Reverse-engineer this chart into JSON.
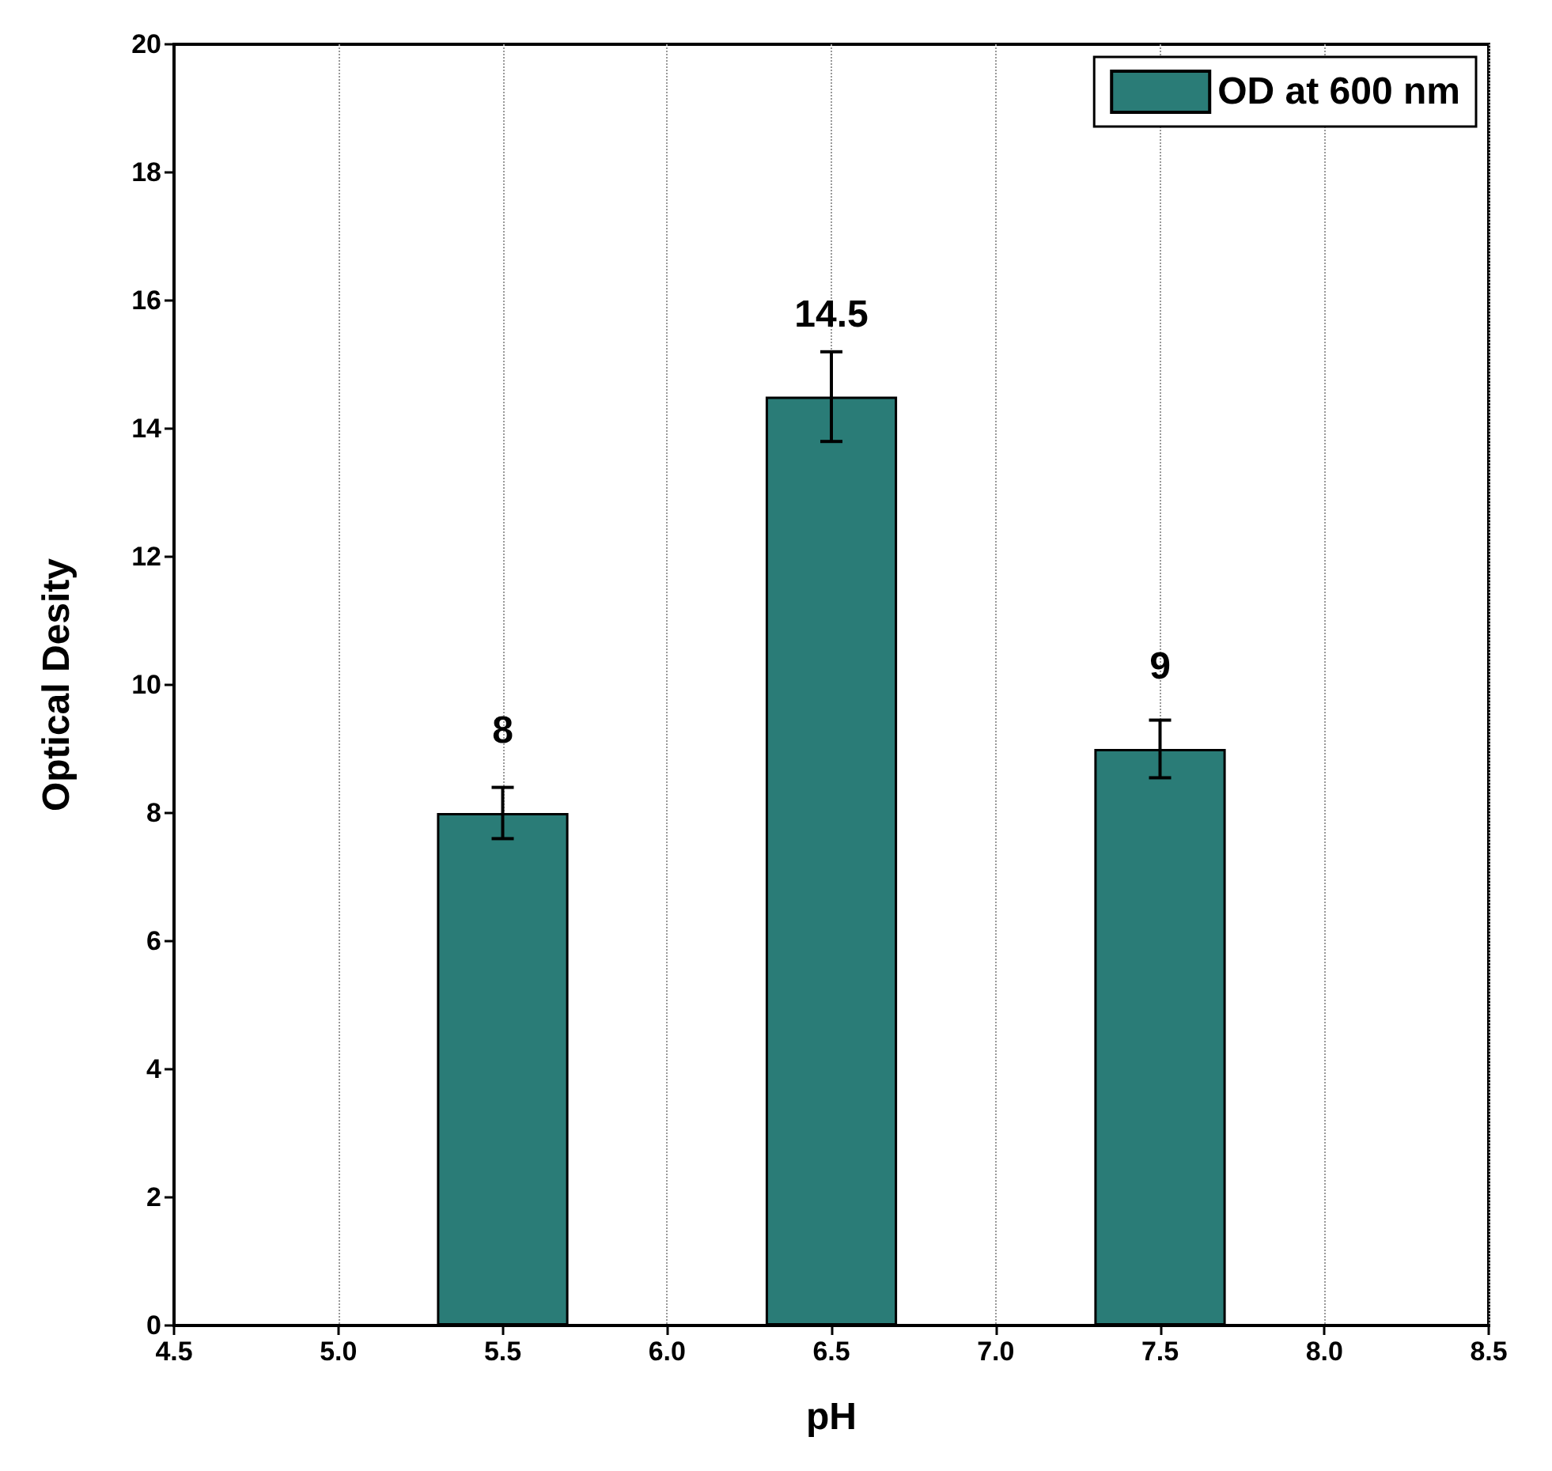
{
  "chart_data": {
    "type": "bar",
    "xlabel": "pH",
    "ylabel": "Optical Desity",
    "x": [
      5.5,
      6.5,
      7.5
    ],
    "series": [
      {
        "name": "OD at 600 nm",
        "color": "#2a7c77",
        "values": [
          8,
          14.5,
          9
        ],
        "errors": [
          0.4,
          0.7,
          0.45
        ]
      }
    ],
    "data_labels": true,
    "xlim": [
      4.5,
      8.5
    ],
    "xticks": [
      {
        "value": 4.5,
        "label": "4.5"
      },
      {
        "value": 5,
        "label": "5.0"
      },
      {
        "value": 5.5,
        "label": "5.5"
      },
      {
        "value": 6,
        "label": "6.0"
      },
      {
        "value": 6.5,
        "label": "6.5"
      },
      {
        "value": 7,
        "label": "7.0"
      },
      {
        "value": 7.5,
        "label": "7.5"
      },
      {
        "value": 8,
        "label": "8.0"
      },
      {
        "value": 8.5,
        "label": "8.5"
      }
    ],
    "ylim": [
      0,
      20
    ],
    "yticks": [
      0,
      2,
      4,
      6,
      8,
      10,
      12,
      14,
      16,
      18,
      20
    ],
    "grid": "x",
    "legend": "top right"
  }
}
